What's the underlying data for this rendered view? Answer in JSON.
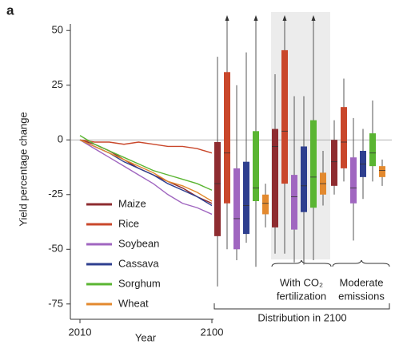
{
  "chart_data": [
    {
      "type": "line",
      "panel_label": "a",
      "ylabel": "Yield percentage change",
      "xlabel": "Year",
      "xlim": [
        2010,
        2100
      ],
      "xticks": [
        2010,
        2100
      ],
      "ylim": [
        -82,
        53
      ],
      "yticks": [
        -75,
        -50,
        -25,
        0,
        25,
        50
      ],
      "x": [
        2010,
        2020,
        2030,
        2040,
        2050,
        2060,
        2070,
        2080,
        2090,
        2100
      ],
      "series": [
        {
          "name": "Maize",
          "color": "#8e2c30",
          "values": [
            0,
            -2,
            -5,
            -9,
            -13,
            -16,
            -19,
            -22,
            -26,
            -29
          ]
        },
        {
          "name": "Rice",
          "color": "#c9472b",
          "values": [
            0,
            -1,
            -1,
            -2,
            -1,
            -2,
            -3,
            -3,
            -4,
            -6
          ]
        },
        {
          "name": "Soybean",
          "color": "#a066c0",
          "values": [
            0,
            -4,
            -8,
            -12,
            -16,
            -20,
            -25,
            -29,
            -31,
            -34
          ]
        },
        {
          "name": "Cassava",
          "color": "#2e3f8f",
          "values": [
            0,
            -3,
            -6,
            -10,
            -13,
            -16,
            -20,
            -23,
            -26,
            -30
          ]
        },
        {
          "name": "Sorghum",
          "color": "#5ab532",
          "values": [
            2,
            -2,
            -5,
            -8,
            -11,
            -14,
            -16,
            -18,
            -20,
            -23
          ]
        },
        {
          "name": "Wheat",
          "color": "#e3892e",
          "values": [
            0,
            -3,
            -6,
            -9,
            -12,
            -15,
            -19,
            -21,
            -24,
            -28
          ]
        }
      ]
    },
    {
      "type": "box",
      "label": "Distribution in 2100",
      "groups": [
        {
          "label": null,
          "boxes": [
            [
              -67,
              -44,
              -20,
              -1,
              38
            ],
            [
              -50,
              -29,
              -6,
              31,
              60
            ],
            [
              -55,
              -50,
              -36,
              -13,
              25
            ],
            [
              -47,
              -43,
              -30,
              -10,
              40
            ],
            [
              -58,
              -28,
              -22,
              4,
              60
            ],
            [
              -40,
              -34,
              -29,
              -25,
              -20
            ]
          ]
        },
        {
          "label": [
            "With CO₂",
            "fertilization"
          ],
          "boxes": [
            [
              -52,
              -40,
              -3,
              5,
              30
            ],
            [
              -52,
              -20,
              4,
              41,
              60
            ],
            [
              -56,
              -41,
              -26,
              -16,
              20
            ],
            [
              -57,
              -33,
              -21,
              -3,
              20
            ],
            [
              -55,
              -31,
              -17,
              9,
              60
            ],
            [
              -30,
              -25,
              -20,
              -15,
              -5
            ]
          ]
        },
        {
          "label": [
            "Moderate",
            "emissions"
          ],
          "boxes": [
            [
              -25,
              -21,
              -10,
              0,
              9
            ],
            [
              -19,
              -13,
              -1,
              15,
              28
            ],
            [
              -46,
              -29,
              -22,
              -8,
              10
            ],
            [
              -27,
              -17,
              -11,
              -5,
              5
            ],
            [
              -19,
              -12,
              -6,
              3,
              18
            ],
            [
              -21,
              -17,
              -14,
              -12,
              -9
            ]
          ]
        }
      ]
    }
  ]
}
